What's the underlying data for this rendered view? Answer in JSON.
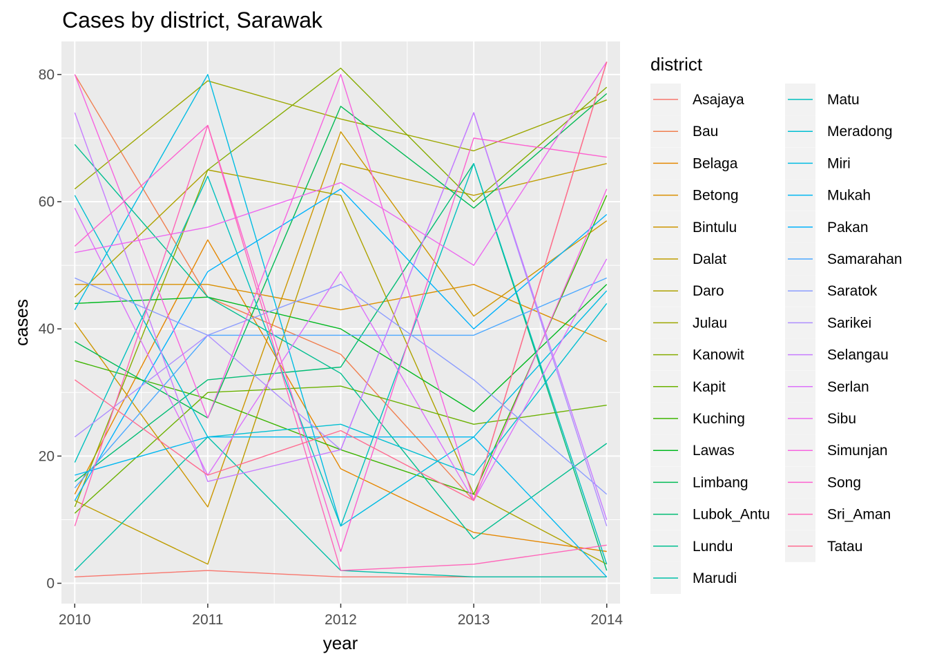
{
  "chart_data": {
    "type": "line",
    "title": "Cases by district, Sarawak",
    "xlabel": "year",
    "ylabel": "cases",
    "legend_title": "district",
    "legend_position": "right",
    "x": [
      2010,
      2011,
      2012,
      2013,
      2014
    ],
    "x_ticks": [
      2010,
      2011,
      2012,
      2013,
      2014
    ],
    "y_ticks": [
      0,
      20,
      40,
      60,
      80
    ],
    "xlim": [
      2009.9,
      2014.1
    ],
    "ylim": [
      -3.2,
      85.2
    ],
    "grid": true,
    "background": "#EBEBEB",
    "series": [
      {
        "name": "Asajaya",
        "color": "#F8766D",
        "values": [
          1,
          2,
          1,
          1,
          1
        ]
      },
      {
        "name": "Bau",
        "color": "#F07F4F",
        "values": [
          80,
          45,
          36,
          13,
          82
        ]
      },
      {
        "name": "Belaga",
        "color": "#E58700",
        "values": [
          14,
          54,
          18,
          8,
          5
        ]
      },
      {
        "name": "Betong",
        "color": "#DA8F00",
        "values": [
          47,
          47,
          43,
          47,
          38
        ]
      },
      {
        "name": "Bintulu",
        "color": "#CD9600",
        "values": [
          41,
          12,
          71,
          42,
          57
        ]
      },
      {
        "name": "Dalat",
        "color": "#BE9C00",
        "values": [
          13,
          3,
          66,
          61,
          66
        ]
      },
      {
        "name": "Daro",
        "color": "#AEA200",
        "values": [
          45,
          65,
          61,
          14,
          3
        ]
      },
      {
        "name": "Julau",
        "color": "#9CA700",
        "values": [
          62,
          79,
          73,
          68,
          76
        ]
      },
      {
        "name": "Kanowit",
        "color": "#86AC00",
        "values": [
          12,
          65,
          81,
          60,
          78
        ]
      },
      {
        "name": "Kapit",
        "color": "#6BB100",
        "values": [
          11,
          30,
          31,
          25,
          28
        ]
      },
      {
        "name": "Kuching",
        "color": "#3CB400",
        "values": [
          35,
          29,
          21,
          14,
          61
        ]
      },
      {
        "name": "Lawas",
        "color": "#00B81F",
        "values": [
          44,
          45,
          40,
          27,
          47
        ]
      },
      {
        "name": "Limbang",
        "color": "#00BA54",
        "values": [
          38,
          26,
          75,
          59,
          77
        ]
      },
      {
        "name": "Lubok_Antu",
        "color": "#00BC74",
        "values": [
          16,
          32,
          34,
          66,
          2
        ]
      },
      {
        "name": "Lundu",
        "color": "#00BE90",
        "values": [
          69,
          45,
          33,
          7,
          22
        ]
      },
      {
        "name": "Marudi",
        "color": "#00BFA8",
        "values": [
          2,
          23,
          2,
          1,
          1
        ]
      },
      {
        "name": "Matu",
        "color": "#00C0BE",
        "values": [
          19,
          64,
          9,
          66,
          3
        ]
      },
      {
        "name": "Meradong",
        "color": "#00BFD2",
        "values": [
          61,
          23,
          25,
          17,
          44
        ]
      },
      {
        "name": "Miri",
        "color": "#00BCE3",
        "values": [
          43,
          80,
          9,
          23,
          46
        ]
      },
      {
        "name": "Mukah",
        "color": "#00B8F1",
        "values": [
          17,
          23,
          23,
          23,
          1
        ]
      },
      {
        "name": "Pakan",
        "color": "#00B2FC",
        "values": [
          13,
          49,
          62,
          40,
          58
        ]
      },
      {
        "name": "Samarahan",
        "color": "#4BA8FF",
        "values": [
          15,
          39,
          39,
          39,
          48
        ]
      },
      {
        "name": "Saratok",
        "color": "#8B9CFF",
        "values": [
          48,
          39,
          47,
          32,
          14
        ]
      },
      {
        "name": "Sarikei",
        "color": "#AE8EFF",
        "values": [
          23,
          39,
          21,
          74,
          9
        ]
      },
      {
        "name": "Selangau",
        "color": "#C77CFF",
        "values": [
          74,
          16,
          21,
          74,
          10
        ]
      },
      {
        "name": "Serlan",
        "color": "#DC71FA",
        "values": [
          59,
          17,
          49,
          13,
          51
        ]
      },
      {
        "name": "Sibu",
        "color": "#EC69EF",
        "values": [
          52,
          56,
          63,
          50,
          82
        ]
      },
      {
        "name": "Simunjan",
        "color": "#F763E0",
        "values": [
          80,
          26,
          80,
          13,
          62
        ]
      },
      {
        "name": "Song",
        "color": "#FD61D0",
        "values": [
          53,
          72,
          5,
          70,
          67
        ]
      },
      {
        "name": "Sri_Aman",
        "color": "#FF65B9",
        "values": [
          9,
          72,
          2,
          3,
          6
        ]
      },
      {
        "name": "Tatau",
        "color": "#FF6C91",
        "values": [
          32,
          17,
          24,
          13,
          82
        ]
      }
    ]
  }
}
